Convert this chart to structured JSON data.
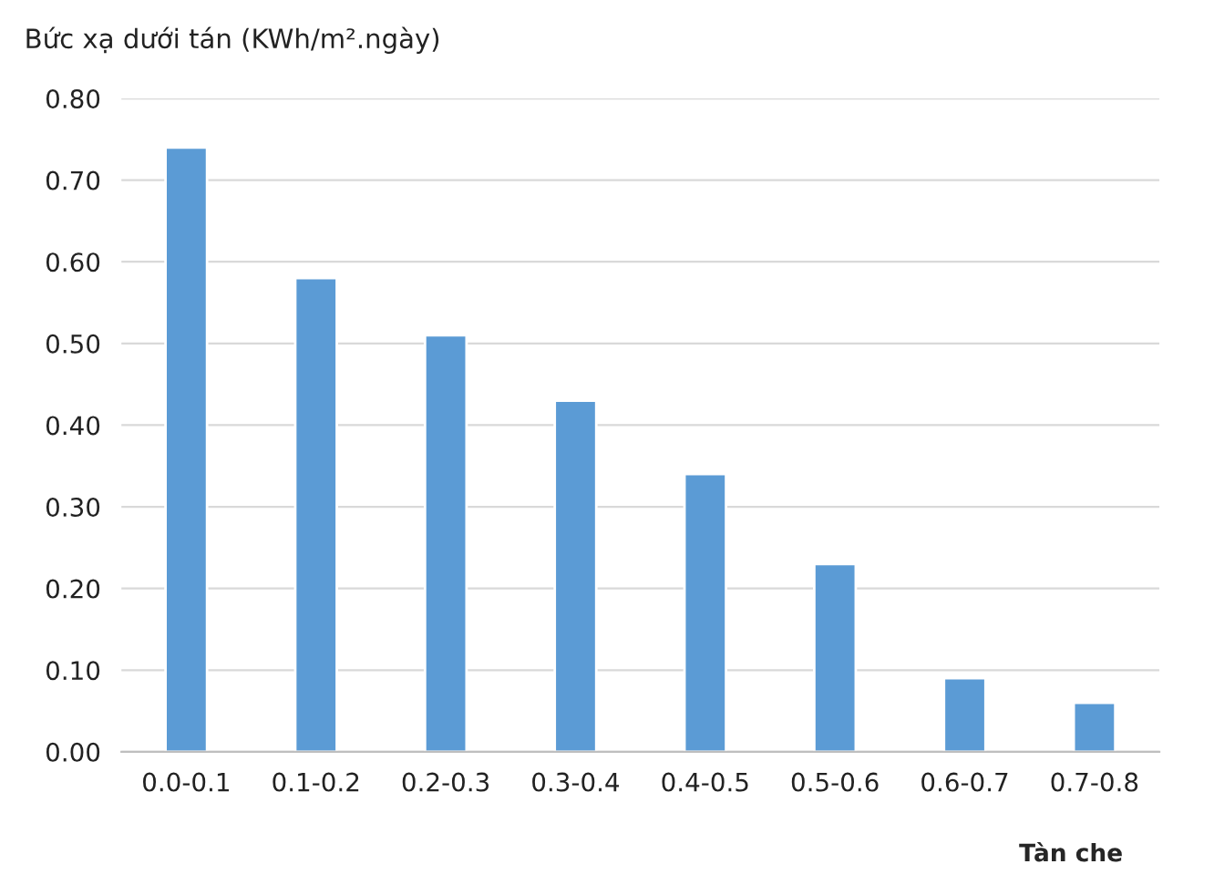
{
  "chart_data": {
    "type": "bar",
    "ylabel": "Bức xạ dưới tán (KWh/m².ngày)",
    "xlabel": "Tàn che",
    "categories": [
      "0.0-0.1",
      "0.1-0.2",
      "0.2-0.3",
      "0.3-0.4",
      "0.4-0.5",
      "0.5-0.6",
      "0.6-0.7",
      "0.7-0.8"
    ],
    "values": [
      0.74,
      0.58,
      0.51,
      0.43,
      0.34,
      0.23,
      0.09,
      0.06
    ],
    "color": "#5b9bd5",
    "ylim": [
      0,
      0.8
    ],
    "yticks": [
      {
        "value": 0,
        "label": "0.00"
      },
      {
        "value": 0.1,
        "label": "0.10"
      },
      {
        "value": 0.2,
        "label": "0.20"
      },
      {
        "value": 0.3,
        "label": "0.30"
      },
      {
        "value": 0.4,
        "label": "0.40"
      },
      {
        "value": 0.5,
        "label": "0.50"
      },
      {
        "value": 0.6,
        "label": "0.60"
      },
      {
        "value": 0.7,
        "label": "0.70"
      },
      {
        "value": 0.8,
        "label": "0.80"
      }
    ],
    "grid": "y"
  }
}
